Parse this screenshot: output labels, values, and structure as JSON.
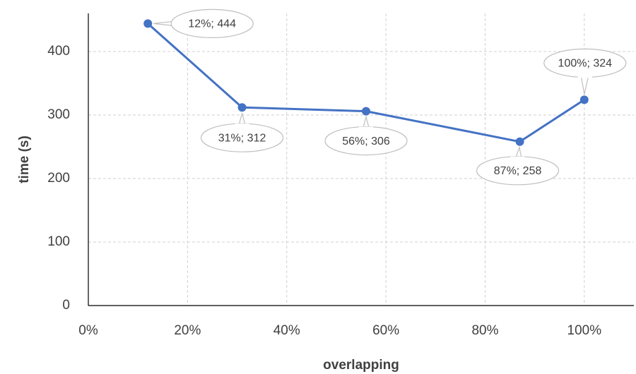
{
  "chart_data": {
    "type": "line",
    "x_label": "overlapping",
    "y_label": "time (s)",
    "x": [
      12,
      31,
      56,
      87,
      100
    ],
    "values": [
      444,
      312,
      306,
      258,
      324
    ],
    "value_labels": [
      "12%; 444",
      "31%; 312",
      "56%; 306",
      "87%; 258",
      "100%; 324"
    ],
    "color": "#4472c4",
    "xlim": [
      0,
      110
    ],
    "xticks": [
      {
        "value": 0,
        "label": "0%"
      },
      {
        "value": 20,
        "label": "20%"
      },
      {
        "value": 40,
        "label": "40%"
      },
      {
        "value": 60,
        "label": "60%"
      },
      {
        "value": 80,
        "label": "80%"
      },
      {
        "value": 100,
        "label": "100%"
      }
    ],
    "ylim": [
      0,
      460
    ],
    "yticks": [
      0,
      100,
      200,
      300,
      400
    ],
    "grid": true
  }
}
